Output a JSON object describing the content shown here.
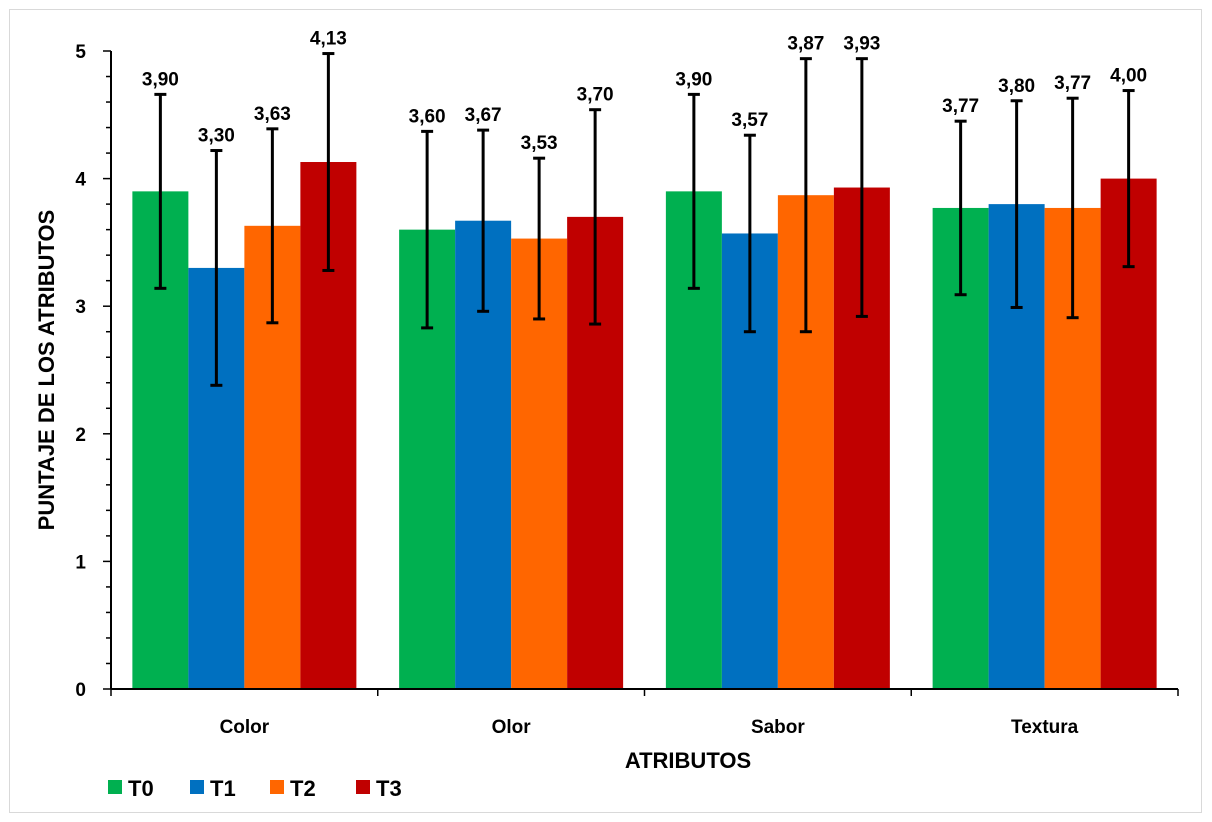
{
  "chart_data": {
    "type": "bar",
    "title": "",
    "xlabel": "ATRIBUTOS",
    "ylabel": "PUNTAJE DE LOS ATRIBUTOS",
    "categories": [
      "Color",
      "Olor",
      "Sabor",
      "Textura"
    ],
    "ylim": [
      0,
      5
    ],
    "yticks": [
      "0",
      "1",
      "2",
      "3",
      "4",
      "5"
    ],
    "grid": false,
    "legend_position": "bottom-left",
    "series": [
      {
        "name": "T0",
        "color": "#00b050",
        "values": [
          3.9,
          3.6,
          3.9,
          3.77
        ],
        "labels": [
          "3,90",
          "3,60",
          "3,90",
          "3,77"
        ],
        "error": [
          0.76,
          0.77,
          0.76,
          0.68
        ]
      },
      {
        "name": "T1",
        "color": "#0070c0",
        "values": [
          3.3,
          3.67,
          3.57,
          3.8
        ],
        "labels": [
          "3,30",
          "3,67",
          "3,57",
          "3,80"
        ],
        "error": [
          0.92,
          0.71,
          0.77,
          0.81
        ]
      },
      {
        "name": "T2",
        "color": "#ff6600",
        "values": [
          3.63,
          3.53,
          3.87,
          3.77
        ],
        "labels": [
          "3,63",
          "3,53",
          "3,87",
          "3,77"
        ],
        "error": [
          0.76,
          0.63,
          1.07,
          0.86
        ]
      },
      {
        "name": "T3",
        "color": "#c00000",
        "values": [
          4.13,
          3.7,
          3.93,
          4.0
        ],
        "labels": [
          "4,13",
          "3,70",
          "3,93",
          "4,00"
        ],
        "error": [
          0.85,
          0.84,
          1.01,
          0.69
        ]
      }
    ]
  }
}
